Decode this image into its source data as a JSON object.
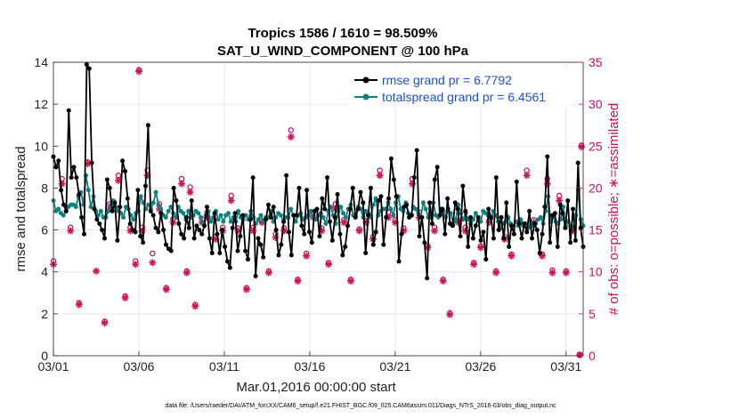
{
  "chart_data": {
    "type": "line",
    "title": "Tropics 1586 / 1610 = 98.509%",
    "subtitle": "SAT_U_WIND_COMPONENT @ 100 hPa",
    "xlabel": "Mar.01,2016 00:00:00 start",
    "ylabel": "rmse and totalspread",
    "ylabel_right": "# of obs: o=possible; ∗=assimilated",
    "footnote": "data file: /Users/raeder/DAI/ATM_forcXX/CAM6_setup/f.e21.FHIST_BGC.f09_025.CAM6assim.011/Diags_NTrS_2016-03/obs_diag_output.nc",
    "x_tick_labels": [
      "03/01",
      "03/06",
      "03/11",
      "03/16",
      "03/21",
      "03/26",
      "03/31"
    ],
    "x_tick_values": [
      0,
      5,
      10,
      15,
      20,
      25,
      30
    ],
    "xlim": [
      0,
      31
    ],
    "ylim": [
      0,
      14
    ],
    "yticks": [
      0,
      2,
      4,
      6,
      8,
      10,
      12,
      14
    ],
    "ylim_right": [
      0,
      35
    ],
    "yticks_right": [
      0,
      5,
      10,
      15,
      20,
      25,
      30,
      35
    ],
    "grid": true,
    "legend_position": "top-right",
    "series": [
      {
        "name": "rmse grand pr = 6.7792",
        "color": "#000000",
        "axis": "left",
        "values": [
          9.5,
          9.0,
          9.3,
          7.9,
          7.2,
          6.9,
          11.7,
          8.5,
          9.0,
          8.5,
          7.7,
          6.6,
          5.8,
          13.9,
          13.7,
          9.2,
          7.0,
          6.5,
          6.3,
          6.0,
          5.6,
          8.4,
          8.0,
          6.9,
          7.3,
          5.5,
          7.1,
          9.3,
          8.8,
          7.5,
          6.3,
          6.0,
          5.9,
          7.9,
          5.7,
          5.4,
          8.1,
          11.0,
          6.9,
          6.7,
          6.1,
          5.9,
          6.8,
          6.0,
          5.3,
          5.1,
          5.0,
          8.0,
          7.4,
          6.3,
          5.8,
          5.6,
          6.6,
          6.1,
          7.4,
          5.6,
          6.2,
          6.0,
          5.8,
          6.2,
          7.1,
          5.6,
          4.9,
          6.8,
          5.8,
          4.9,
          6.0,
          5.2,
          4.5,
          4.2,
          6.1,
          6.8,
          5.0,
          5.7,
          6.7,
          5.0,
          4.6,
          6.5,
          8.5,
          3.8,
          5.6,
          5.3,
          4.7,
          6.5,
          7.2,
          6.6,
          7.1,
          6.0,
          4.8,
          5.3,
          6.4,
          8.6,
          5.9,
          4.8,
          6.7,
          6.7,
          8.0,
          6.2,
          5.8,
          7.9,
          5.9,
          5.4,
          6.9,
          7.0,
          5.7,
          7.5,
          7.0,
          8.5,
          6.4,
          5.5,
          6.6,
          7.7,
          5.8,
          4.8,
          5.2,
          6.2,
          7.0,
          8.0,
          6.6,
          7.0,
          7.8,
          7.3,
          4.9,
          6.7,
          8.0,
          5.3,
          5.9,
          7.4,
          7.6,
          5.3,
          6.6,
          7.5,
          9.4,
          8.4,
          7.6,
          4.5,
          5.8,
          7.1,
          7.2,
          6.6,
          6.7,
          8.5,
          9.8,
          5.7,
          6.6,
          5.4,
          3.7,
          7.3,
          6.3,
          8.4,
          9.0,
          6.7,
          7.0,
          5.8,
          7.5,
          6.3,
          6.2,
          7.3,
          7.0,
          5.7,
          8.1,
          6.9,
          5.2,
          6.6,
          5.6,
          6.2,
          6.6,
          5.5,
          5.9,
          4.6,
          7.0,
          6.6,
          5.6,
          8.5,
          6.0,
          6.6,
          5.6,
          7.3,
          5.2,
          6.2,
          5.8,
          8.3,
          6.3,
          5.6,
          6.3,
          5.9,
          6.9,
          5.6,
          6.3,
          6.0,
          4.9,
          5.8,
          7.1,
          9.5,
          5.4,
          6.7,
          6.8,
          5.2,
          7.2,
          6.8,
          6.1,
          7.4,
          5.4,
          7.0,
          5.5,
          9.2,
          6.1,
          5.2
        ]
      },
      {
        "name": "totalspread grand pr = 6.4561",
        "color": "#0f8080",
        "axis": "left",
        "values": [
          7.4,
          6.9,
          7.0,
          6.8,
          6.7,
          6.9,
          7.1,
          7.2,
          7.2,
          7.1,
          7.6,
          7.8,
          7.2,
          8.6,
          7.9,
          7.1,
          7.6,
          6.9,
          6.7,
          6.9,
          6.6,
          6.6,
          6.9,
          7.2,
          7.4,
          7.1,
          6.9,
          6.8,
          6.6,
          7.1,
          7.0,
          6.7,
          6.5,
          6.8,
          6.9,
          7.6,
          7.3,
          7.0,
          7.2,
          7.0,
          7.3,
          7.8,
          7.2,
          7.0,
          6.7,
          6.6,
          6.9,
          7.1,
          6.8,
          6.6,
          7.1,
          6.9,
          6.8,
          6.5,
          6.9,
          6.6,
          6.7,
          6.9,
          6.8,
          6.6,
          6.3,
          6.7,
          6.9,
          6.4,
          6.6,
          6.9,
          6.5,
          6.7,
          6.4,
          6.7,
          6.8,
          6.4,
          6.6,
          6.4,
          6.9,
          6.6,
          6.5,
          6.7,
          6.5,
          6.9,
          6.6,
          6.3,
          6.5,
          6.7,
          6.4,
          6.6,
          6.6,
          6.9,
          6.4,
          6.6,
          6.8,
          6.7,
          6.4,
          6.6,
          6.6,
          7.0,
          6.7,
          6.4,
          6.7,
          6.8,
          6.5,
          6.6,
          6.7,
          6.9,
          6.6,
          6.5,
          6.7,
          6.8,
          6.6,
          6.3,
          6.9,
          7.1,
          6.7,
          6.3,
          6.9,
          7.1,
          6.8,
          6.6,
          7.0,
          7.2,
          6.7,
          6.7,
          7.1,
          7.0,
          6.6,
          6.9,
          6.8,
          6.6,
          7.2,
          7.5,
          6.7,
          6.9,
          7.0,
          7.0,
          7.3,
          7.0,
          6.7,
          7.3,
          7.6,
          7.0,
          6.9,
          7.3,
          6.8,
          6.7,
          7.1,
          7.0,
          6.8,
          6.6,
          7.3,
          7.0,
          6.6,
          6.6,
          7.3,
          6.7,
          6.6,
          7.0,
          6.9,
          6.6,
          7.0,
          6.8,
          6.3,
          6.5,
          7.2,
          6.8,
          6.5,
          6.8,
          6.5,
          6.3,
          6.5,
          6.8,
          6.6,
          6.4,
          6.9,
          6.8,
          6.7,
          6.5,
          6.9,
          6.7,
          6.4,
          6.1,
          6.3,
          6.4,
          6.6,
          6.3,
          6.2,
          6.4,
          6.2,
          6.5,
          6.2,
          6.3,
          6.1,
          6.4,
          6.2,
          6.3,
          6.5,
          6.6,
          6.3,
          6.9,
          7.6,
          6.4,
          6.6,
          6.4,
          6.3,
          6.5,
          7.1,
          6.2,
          6.4,
          6.2,
          6.1,
          6.7,
          7.9,
          6.5,
          6.2
        ]
      }
    ],
    "obs_possible": {
      "name": "possible",
      "marker": "o",
      "color": "#d0105a",
      "axis": "right",
      "points": [
        [
          0.0,
          11.3
        ],
        [
          0.5,
          21.1
        ],
        [
          1.0,
          15.3
        ],
        [
          1.5,
          6.3
        ],
        [
          2.0,
          23.1
        ],
        [
          3.0,
          4.1
        ],
        [
          3.3,
          18.1
        ],
        [
          3.8,
          21.5
        ],
        [
          4.2,
          7.1
        ],
        [
          4.5,
          15.3
        ],
        [
          4.8,
          11.3
        ],
        [
          5.0,
          34.1
        ],
        [
          5.2,
          15.3
        ],
        [
          5.5,
          22.1
        ],
        [
          5.8,
          12.2
        ],
        [
          6.2,
          18.1
        ],
        [
          6.6,
          8.1
        ],
        [
          7.0,
          16.3
        ],
        [
          7.5,
          21.1
        ],
        [
          7.8,
          10.1
        ],
        [
          8.0,
          20.1
        ],
        [
          8.3,
          6.1
        ],
        [
          8.7,
          16.3
        ],
        [
          9.0,
          17.1
        ],
        [
          9.5,
          14.2
        ],
        [
          9.9,
          15.3
        ],
        [
          10.4,
          19.1
        ],
        [
          10.8,
          15.2
        ],
        [
          11.3,
          8.1
        ],
        [
          11.7,
          15.3
        ],
        [
          12.2,
          16.1
        ],
        [
          12.6,
          10.1
        ],
        [
          13.0,
          14.5
        ],
        [
          13.5,
          15.2
        ],
        [
          13.9,
          26.9
        ],
        [
          14.3,
          9.1
        ],
        [
          14.8,
          12.2
        ],
        [
          15.2,
          17.1
        ],
        [
          15.7,
          15.2
        ],
        [
          16.1,
          11.1
        ],
        [
          16.5,
          18.1
        ],
        [
          17.0,
          16.2
        ],
        [
          17.4,
          9.1
        ],
        [
          17.9,
          15.1
        ],
        [
          18.3,
          16.1
        ],
        [
          18.7,
          14.2
        ],
        [
          19.1,
          22.1
        ],
        [
          19.6,
          17.1
        ],
        [
          20.0,
          16.2
        ],
        [
          20.5,
          15.2
        ],
        [
          21.0,
          21.1
        ],
        [
          21.4,
          17.1
        ],
        [
          21.9,
          13.1
        ],
        [
          22.3,
          15.3
        ],
        [
          22.8,
          9.1
        ],
        [
          23.2,
          5.1
        ],
        [
          23.7,
          16.1
        ],
        [
          24.1,
          15.3
        ],
        [
          24.6,
          11.1
        ],
        [
          25.0,
          13.1
        ],
        [
          25.5,
          16.1
        ],
        [
          25.9,
          10.1
        ],
        [
          26.4,
          14.2
        ],
        [
          26.8,
          12.1
        ],
        [
          27.3,
          16.1
        ],
        [
          27.7,
          22.1
        ],
        [
          28.1,
          16.2
        ],
        [
          28.6,
          12.1
        ],
        [
          28.9,
          21.1
        ],
        [
          29.2,
          10.2
        ],
        [
          29.6,
          19.1
        ],
        [
          30.0,
          10.1
        ],
        [
          30.4,
          15.2
        ],
        [
          30.8,
          0.1
        ],
        [
          30.9,
          25.1
        ]
      ]
    },
    "obs_assimilated": {
      "name": "assimilated",
      "marker": "*",
      "color": "#d0105a",
      "axis": "right",
      "points": [
        [
          0.0,
          10.9
        ],
        [
          0.5,
          20.5
        ],
        [
          1.0,
          14.9
        ],
        [
          1.5,
          6.1
        ],
        [
          2.0,
          22.9
        ],
        [
          2.5,
          10.1
        ],
        [
          3.0,
          3.9
        ],
        [
          3.3,
          17.5
        ],
        [
          3.8,
          20.9
        ],
        [
          4.2,
          6.9
        ],
        [
          4.5,
          14.9
        ],
        [
          4.8,
          10.9
        ],
        [
          5.0,
          33.9
        ],
        [
          5.2,
          14.9
        ],
        [
          5.5,
          21.5
        ],
        [
          5.8,
          11.1
        ],
        [
          6.2,
          17.5
        ],
        [
          6.6,
          7.9
        ],
        [
          7.0,
          15.9
        ],
        [
          7.5,
          20.5
        ],
        [
          7.8,
          9.9
        ],
        [
          8.0,
          19.5
        ],
        [
          8.3,
          5.9
        ],
        [
          8.7,
          15.9
        ],
        [
          9.0,
          16.5
        ],
        [
          9.5,
          13.9
        ],
        [
          9.9,
          14.9
        ],
        [
          10.4,
          18.5
        ],
        [
          10.8,
          14.9
        ],
        [
          11.3,
          7.9
        ],
        [
          11.7,
          14.9
        ],
        [
          12.2,
          15.9
        ],
        [
          12.6,
          9.9
        ],
        [
          13.0,
          14.1
        ],
        [
          13.5,
          14.9
        ],
        [
          13.9,
          26.1
        ],
        [
          14.3,
          8.9
        ],
        [
          14.8,
          11.9
        ],
        [
          15.2,
          16.5
        ],
        [
          15.7,
          14.9
        ],
        [
          16.1,
          10.9
        ],
        [
          16.5,
          17.5
        ],
        [
          17.0,
          15.9
        ],
        [
          17.4,
          8.9
        ],
        [
          17.9,
          14.9
        ],
        [
          18.3,
          15.9
        ],
        [
          18.7,
          13.9
        ],
        [
          19.1,
          21.5
        ],
        [
          19.6,
          16.5
        ],
        [
          20.0,
          15.9
        ],
        [
          20.5,
          14.9
        ],
        [
          21.0,
          20.5
        ],
        [
          21.4,
          16.5
        ],
        [
          21.9,
          12.9
        ],
        [
          22.3,
          14.9
        ],
        [
          22.8,
          8.9
        ],
        [
          23.2,
          4.9
        ],
        [
          23.7,
          15.9
        ],
        [
          24.1,
          14.9
        ],
        [
          24.6,
          10.9
        ],
        [
          25.0,
          12.9
        ],
        [
          25.5,
          15.9
        ],
        [
          25.9,
          9.9
        ],
        [
          26.4,
          13.9
        ],
        [
          26.8,
          11.9
        ],
        [
          27.3,
          15.9
        ],
        [
          27.7,
          21.5
        ],
        [
          28.1,
          15.9
        ],
        [
          28.6,
          11.9
        ],
        [
          28.9,
          20.5
        ],
        [
          29.2,
          9.9
        ],
        [
          29.6,
          18.5
        ],
        [
          30.0,
          9.9
        ],
        [
          30.4,
          14.9
        ],
        [
          30.8,
          0.1
        ],
        [
          30.9,
          24.9
        ]
      ]
    }
  }
}
